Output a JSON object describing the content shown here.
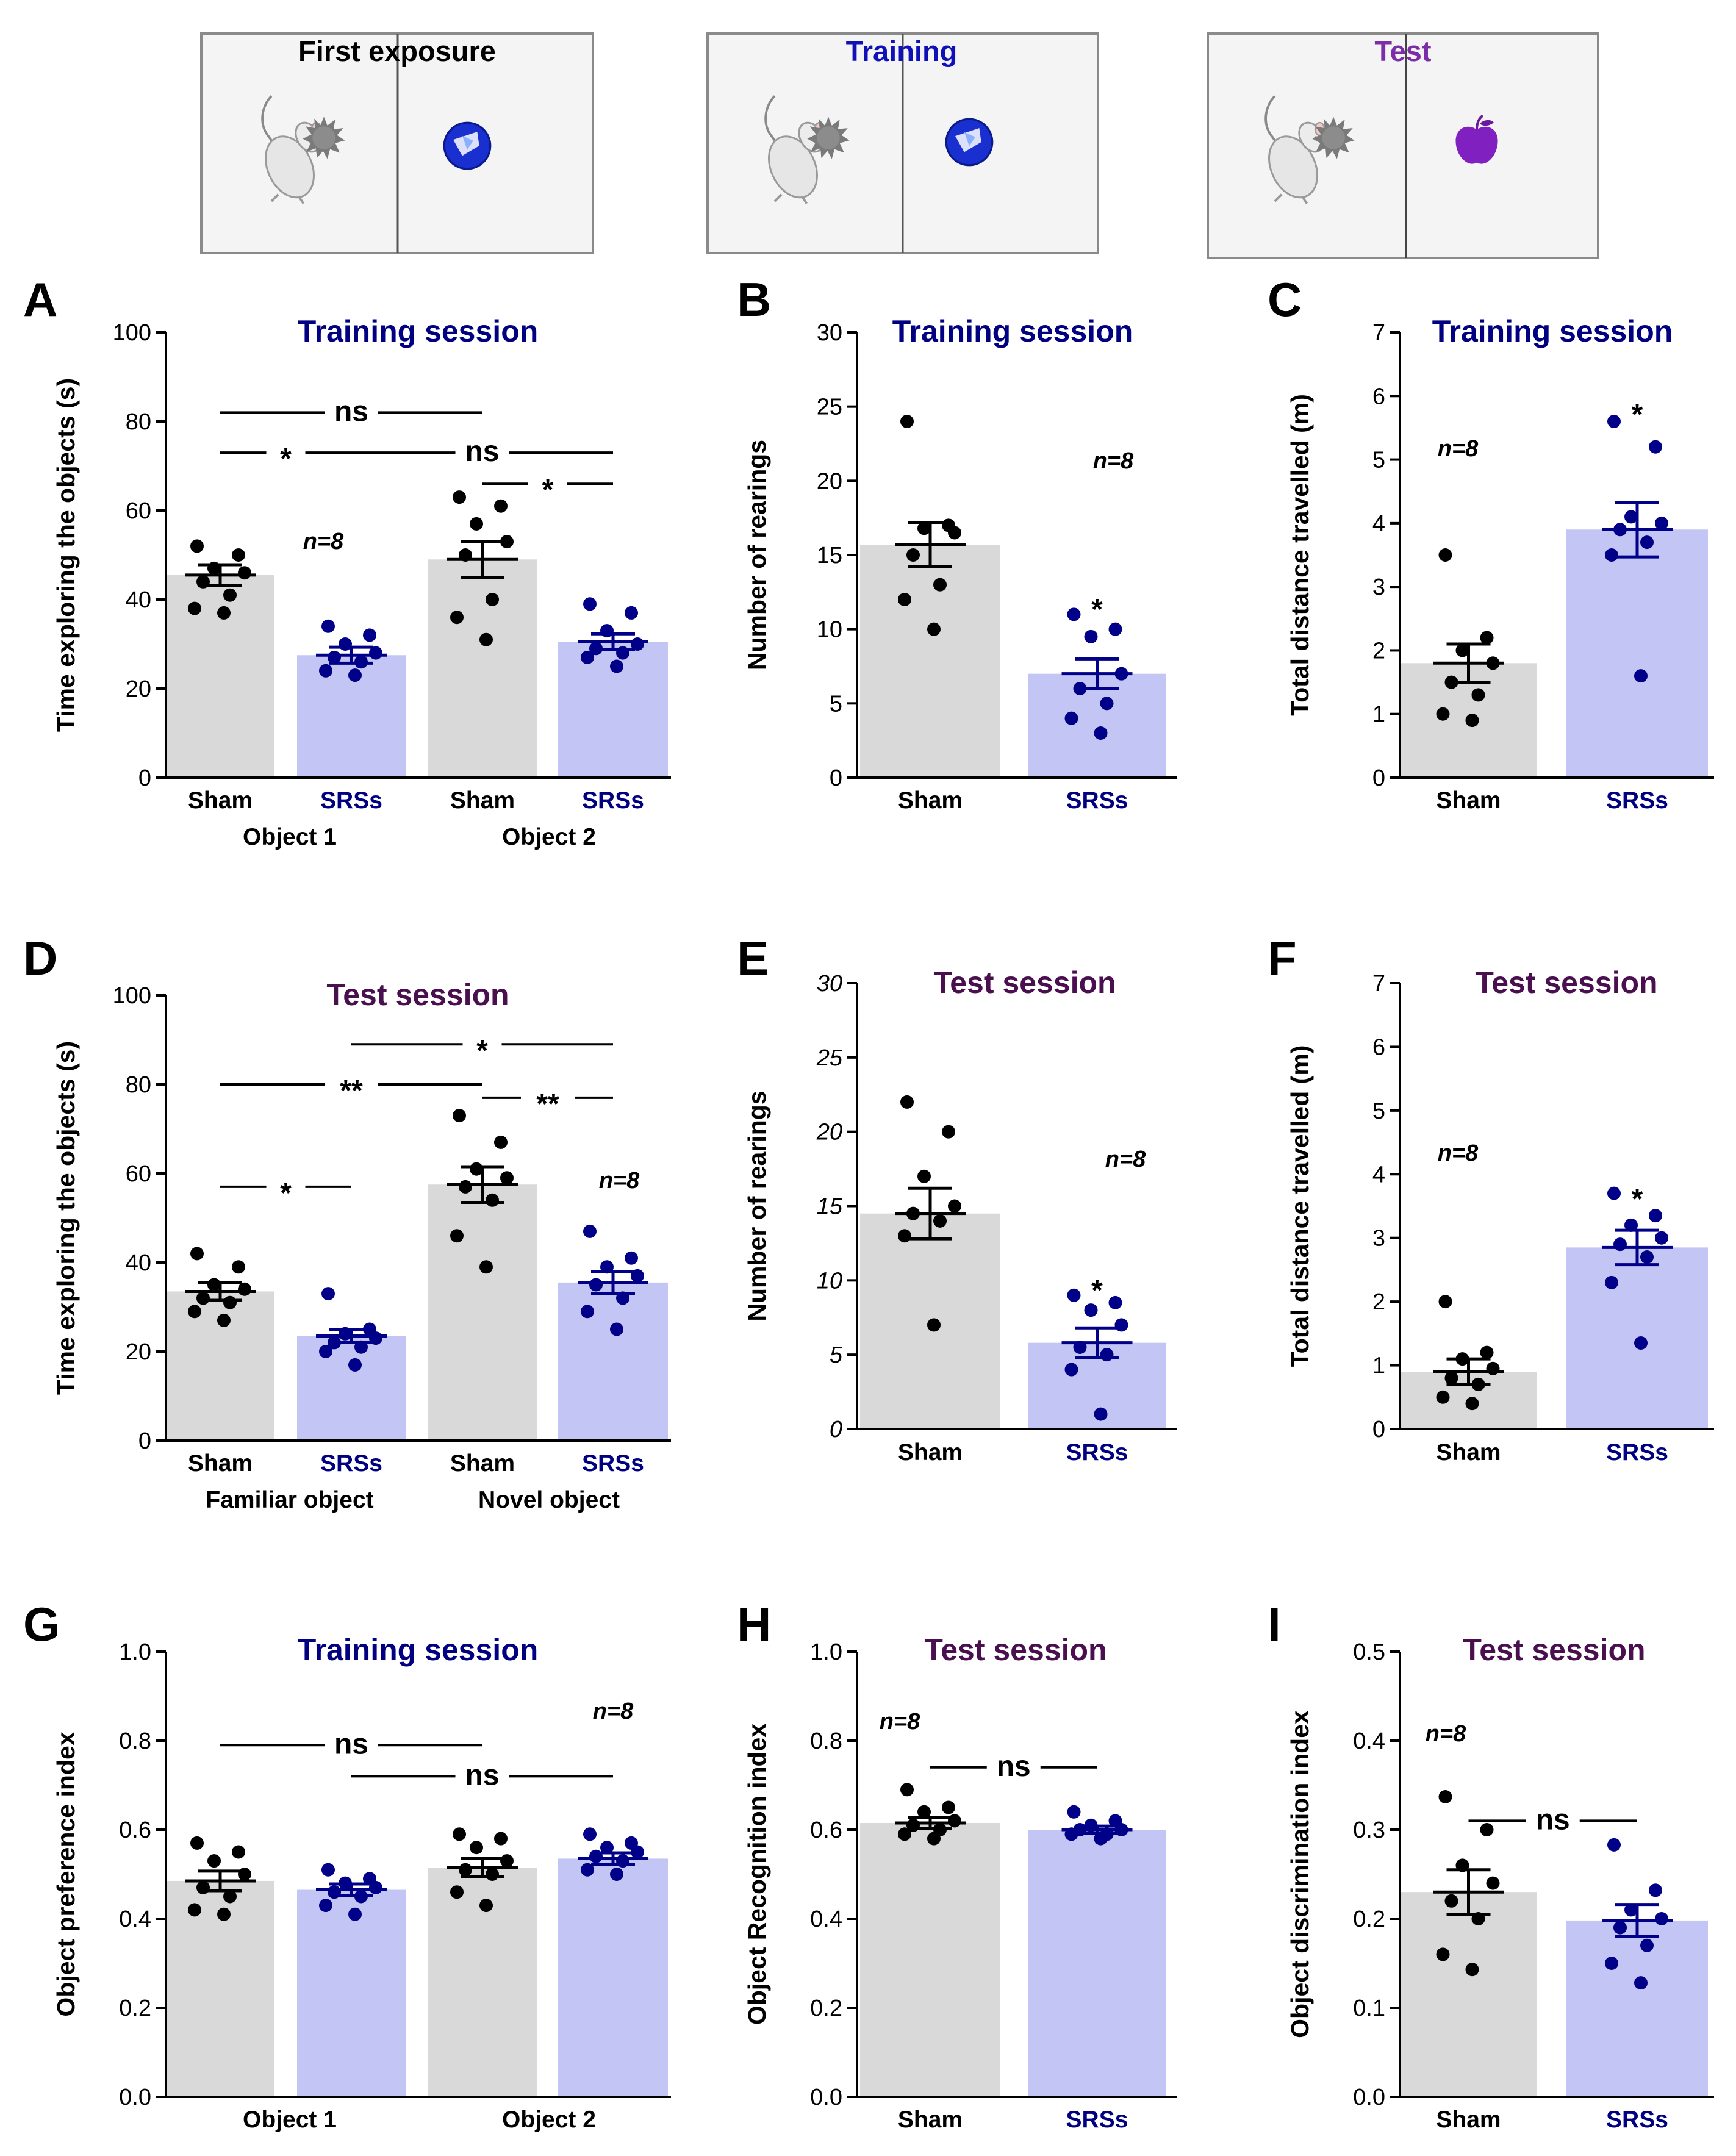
{
  "colors": {
    "sham_bar": "#d9d9d9",
    "srs_bar": "#c3c6f5",
    "sham_dot": "#000000",
    "srs_dot": "#000088",
    "srs_label": "#000080",
    "training_title": "#000080",
    "test_title": "#4a0f4f",
    "scene_training": "#1010b8",
    "scene_test": "#7b2ea8"
  },
  "scenes": [
    {
      "title": "First exposure",
      "left_object": "gray-spiky-ball-icon",
      "right_object": "blue-ball-icon"
    },
    {
      "title": "Training",
      "left_object": "gray-spiky-ball-icon",
      "right_object": "blue-ball-icon"
    },
    {
      "title": "Test",
      "left_object": "gray-spiky-ball-icon",
      "right_object": "purple-apple-icon"
    }
  ],
  "chart_data": [
    {
      "panel": "A",
      "type": "bar",
      "title": "Training session",
      "ylabel": "Time exploring the objects (s)",
      "ylim": [
        0,
        100
      ],
      "yticks": [
        "0",
        "20",
        "40",
        "60",
        "80",
        "100"
      ],
      "categories": [
        "Sham",
        "SRSs",
        "Sham",
        "SRSs"
      ],
      "groups": [
        "Object 1",
        "Object 2"
      ],
      "values": [
        45.5,
        27.5,
        49,
        30.5
      ],
      "sem": [
        2.3,
        1.8,
        4,
        1.8
      ],
      "points": [
        [
          52,
          50,
          47,
          46,
          44,
          41,
          38,
          37
        ],
        [
          34,
          32,
          30,
          28,
          27,
          26,
          24,
          23
        ],
        [
          63,
          61,
          57,
          53,
          50,
          40,
          36,
          31
        ],
        [
          39,
          37,
          33,
          30,
          29,
          28,
          27,
          25
        ]
      ],
      "n_label": "n=8",
      "significance": [
        {
          "label": "ns",
          "from": 0,
          "to": 2,
          "y": 82
        },
        {
          "label": "*",
          "from": 0,
          "to": 1,
          "y": 73
        },
        {
          "label": "ns",
          "from": 1,
          "to": 3,
          "y": 73
        },
        {
          "label": "*",
          "from": 2,
          "to": 3,
          "y": 66
        }
      ]
    },
    {
      "panel": "B",
      "type": "bar",
      "title": "Training session",
      "ylabel": "Number of rearings",
      "ylim": [
        0,
        30
      ],
      "yticks": [
        "0",
        "5",
        "10",
        "15",
        "20",
        "25",
        "30"
      ],
      "categories": [
        "Sham",
        "SRSs"
      ],
      "values": [
        15.7,
        7
      ],
      "sem": [
        1.5,
        1
      ],
      "points": [
        [
          24,
          17,
          16.8,
          16.5,
          15,
          13,
          12,
          10
        ],
        [
          11,
          10,
          9.5,
          7,
          6,
          5,
          4,
          3
        ]
      ],
      "n_label": "n=8",
      "significance": [
        {
          "label": "*",
          "bar": 1,
          "y": 11.5
        }
      ]
    },
    {
      "panel": "C",
      "type": "bar",
      "title": "Training session",
      "ylabel": "Total distance travelled (m)",
      "ylim": [
        0,
        7
      ],
      "yticks": [
        "0",
        "1",
        "2",
        "3",
        "4",
        "5",
        "6",
        "7"
      ],
      "categories": [
        "Sham",
        "SRSs"
      ],
      "values": [
        1.8,
        3.9
      ],
      "sem": [
        0.3,
        0.43
      ],
      "points": [
        [
          3.5,
          2.2,
          2.0,
          1.8,
          1.5,
          1.3,
          1.0,
          0.9
        ],
        [
          5.6,
          5.2,
          4.1,
          4.0,
          3.9,
          3.7,
          3.5,
          1.6
        ]
      ],
      "n_label": "n=8",
      "significance": [
        {
          "label": "*",
          "bar": 1,
          "y": 5.75
        }
      ]
    },
    {
      "panel": "D",
      "type": "bar",
      "title": "Test session",
      "ylabel": "Time exploring the objects (s)",
      "ylim": [
        0,
        100
      ],
      "yticks": [
        "0",
        "20",
        "40",
        "60",
        "80",
        "100"
      ],
      "categories": [
        "Sham",
        "SRSs",
        "Sham",
        "SRSs"
      ],
      "groups": [
        "Familiar object",
        "Novel object"
      ],
      "values": [
        33.5,
        23.5,
        57.5,
        35.5
      ],
      "sem": [
        2,
        1.5,
        4,
        2.5
      ],
      "points": [
        [
          42,
          39,
          35,
          34,
          32,
          31,
          29,
          27
        ],
        [
          33,
          25,
          24,
          23,
          22,
          21,
          20,
          17
        ],
        [
          73,
          67,
          61,
          59,
          57,
          54,
          46,
          39
        ],
        [
          47,
          41,
          39,
          37,
          35,
          32,
          29,
          25
        ]
      ],
      "n_label": "n=8",
      "significance": [
        {
          "label": "*",
          "from": 1,
          "to": 3,
          "y": 89
        },
        {
          "label": "**",
          "from": 0,
          "to": 2,
          "y": 80
        },
        {
          "label": "**",
          "from": 2,
          "to": 3,
          "y": 77
        },
        {
          "label": "*",
          "from": 0,
          "to": 1,
          "y": 57
        }
      ]
    },
    {
      "panel": "E",
      "type": "bar",
      "title": "Test session",
      "ylabel": "Number of rearings",
      "ylim": [
        0,
        30
      ],
      "yticks": [
        "0",
        "5",
        "10",
        "15",
        "20",
        "25",
        "30"
      ],
      "categories": [
        "Sham",
        "SRSs"
      ],
      "values": [
        14.5,
        5.8
      ],
      "sem": [
        1.7,
        1
      ],
      "points": [
        [
          22,
          20,
          17,
          15,
          14.5,
          14,
          13,
          7
        ],
        [
          9,
          8.5,
          8,
          7,
          5.5,
          5,
          4,
          1
        ]
      ],
      "n_label": "n=8",
      "significance": [
        {
          "label": "*",
          "bar": 1,
          "y": 9.5
        }
      ]
    },
    {
      "panel": "F",
      "type": "bar",
      "title": "Test session",
      "ylabel": "Total distance travelled (m)",
      "ylim": [
        0,
        7
      ],
      "yticks": [
        "0",
        "1",
        "2",
        "3",
        "4",
        "5",
        "6",
        "7"
      ],
      "categories": [
        "Sham",
        "SRSs"
      ],
      "values": [
        0.9,
        2.85
      ],
      "sem": [
        0.2,
        0.27
      ],
      "points": [
        [
          2.0,
          1.2,
          1.1,
          0.95,
          0.8,
          0.7,
          0.5,
          0.4
        ],
        [
          3.7,
          3.35,
          3.2,
          3.0,
          2.9,
          2.7,
          2.3,
          1.35
        ]
      ],
      "n_label": "n=8",
      "significance": [
        {
          "label": "*",
          "bar": 1,
          "y": 3.65
        }
      ]
    },
    {
      "panel": "G",
      "type": "bar",
      "title": "Training session",
      "ylabel": "Object preference index",
      "ylim": [
        0,
        1.0
      ],
      "yticks": [
        "0.0",
        "0.2",
        "0.4",
        "0.6",
        "0.8",
        "1.0"
      ],
      "categories": [
        "",
        "",
        "",
        ""
      ],
      "groups": [
        "Object 1",
        "Object 2"
      ],
      "values": [
        0.485,
        0.465,
        0.515,
        0.535
      ],
      "sem": [
        0.022,
        0.013,
        0.02,
        0.013
      ],
      "points": [
        [
          0.57,
          0.55,
          0.53,
          0.5,
          0.47,
          0.45,
          0.42,
          0.41
        ],
        [
          0.51,
          0.49,
          0.48,
          0.47,
          0.46,
          0.45,
          0.43,
          0.41
        ],
        [
          0.59,
          0.58,
          0.56,
          0.53,
          0.51,
          0.5,
          0.46,
          0.43
        ],
        [
          0.59,
          0.57,
          0.56,
          0.55,
          0.54,
          0.53,
          0.51,
          0.5
        ]
      ],
      "n_label": "n=8",
      "significance": [
        {
          "label": "ns",
          "from": 0,
          "to": 2,
          "y": 0.79
        },
        {
          "label": "ns",
          "from": 1,
          "to": 3,
          "y": 0.72
        }
      ]
    },
    {
      "panel": "H",
      "type": "bar",
      "title": "Test session",
      "ylabel": "Object Recognition index",
      "ylim": [
        0,
        1.0
      ],
      "yticks": [
        "0.0",
        "0.2",
        "0.4",
        "0.6",
        "0.8",
        "1.0"
      ],
      "categories": [
        "Sham",
        "SRSs"
      ],
      "values": [
        0.615,
        0.6
      ],
      "sem": [
        0.013,
        0.008
      ],
      "points": [
        [
          0.69,
          0.65,
          0.64,
          0.62,
          0.61,
          0.6,
          0.59,
          0.58
        ],
        [
          0.64,
          0.62,
          0.61,
          0.6,
          0.6,
          0.59,
          0.59,
          0.58
        ]
      ],
      "n_label": "n=8",
      "significance": [
        {
          "label": "ns",
          "from": 0,
          "to": 1,
          "y": 0.74
        }
      ]
    },
    {
      "panel": "I",
      "type": "bar",
      "title": "Test session",
      "ylabel": "Object discrimination index",
      "ylim": [
        0,
        0.5
      ],
      "yticks": [
        "0.0",
        "0.1",
        "0.2",
        "0.3",
        "0.4",
        "0.5"
      ],
      "categories": [
        "Sham",
        "SRSs"
      ],
      "values": [
        0.23,
        0.198
      ],
      "sem": [
        0.025,
        0.018
      ],
      "points": [
        [
          0.337,
          0.3,
          0.26,
          0.24,
          0.22,
          0.2,
          0.16,
          0.143
        ],
        [
          0.283,
          0.232,
          0.21,
          0.2,
          0.19,
          0.17,
          0.15,
          0.128
        ]
      ],
      "n_label": "n=8",
      "significance": [
        {
          "label": "ns",
          "from": 0,
          "to": 1,
          "y": 0.31
        }
      ]
    }
  ]
}
